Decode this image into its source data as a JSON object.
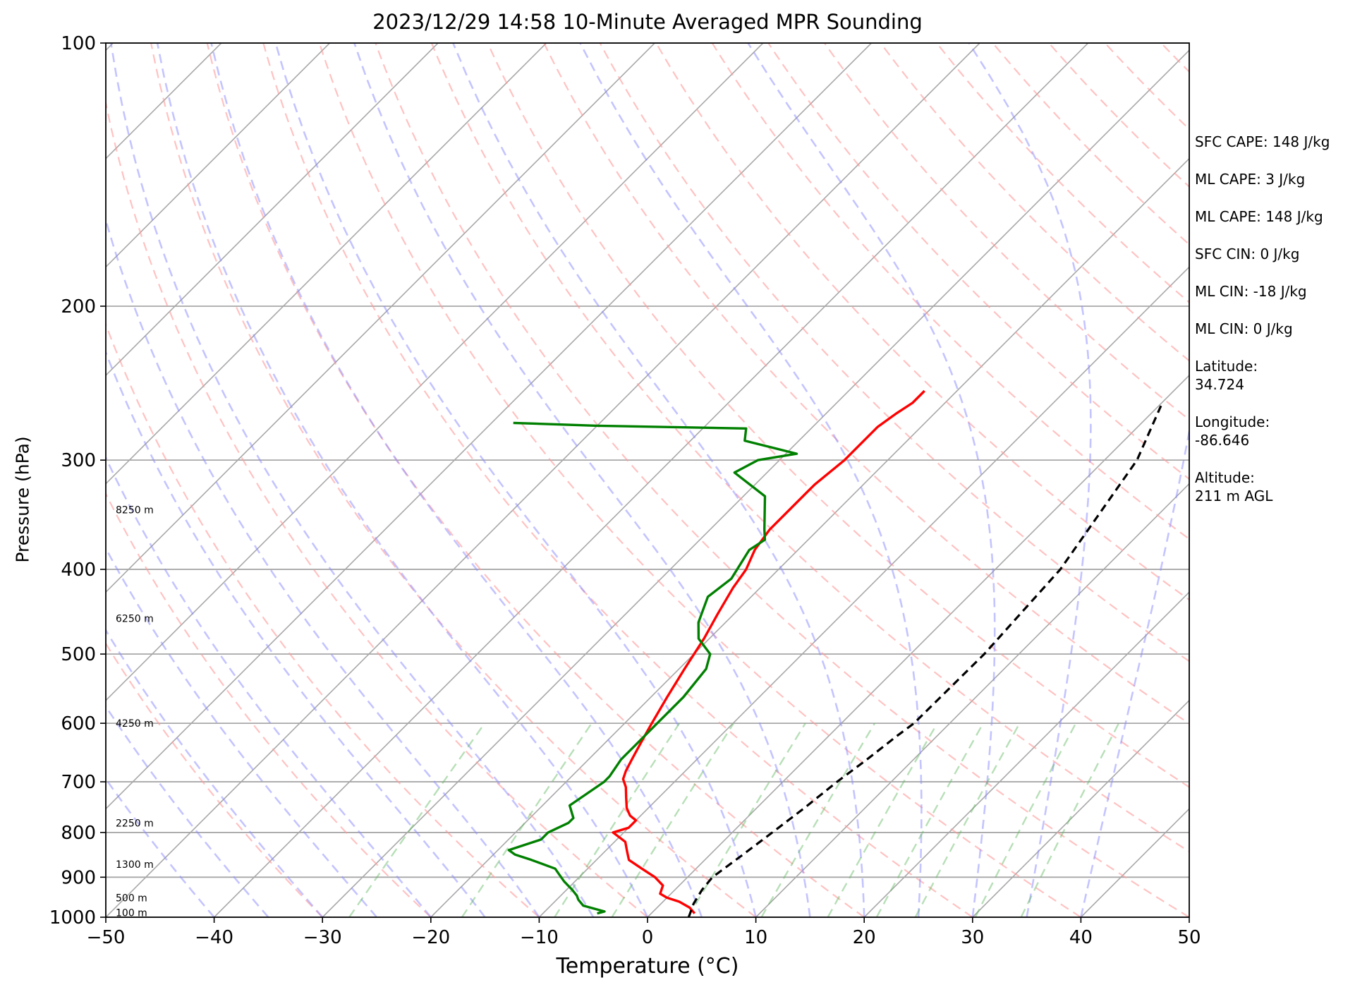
{
  "title": "2023/12/29 14:58 10-Minute Averaged MPR Sounding",
  "stats": [
    {
      "label": "SFC CAPE:",
      "value": "148 J/kg",
      "inline": true
    },
    {
      "label": "ML CAPE:",
      "value": "3 J/kg",
      "inline": true
    },
    {
      "label": "ML CAPE:",
      "value": "148 J/kg",
      "inline": true
    },
    {
      "label": "SFC CIN:",
      "value": "0 J/kg",
      "inline": true
    },
    {
      "label": "ML CIN:",
      "value": "-18 J/kg",
      "inline": true
    },
    {
      "label": "ML CIN:",
      "value": "0 J/kg",
      "inline": true
    },
    {
      "label": "Latitude:",
      "value": "34.724",
      "inline": false
    },
    {
      "label": "Longitude:",
      "value": "-86.646",
      "inline": false
    },
    {
      "label": "Altitude:",
      "value": "211 m AGL",
      "inline": false
    }
  ],
  "chart_data": {
    "type": "line",
    "subtype": "skew-T log-P sounding",
    "title": "2023/12/29 14:58 10-Minute Averaged MPR Sounding",
    "xlabel": "Temperature (°C)",
    "ylabel": "Pressure (hPa)",
    "xlim": [
      -50,
      50
    ],
    "ylim": [
      1000,
      100
    ],
    "yscale": "log",
    "skew": "isotherms tilted at 45 degrees",
    "x_ticks": [
      -50,
      -40,
      -30,
      -20,
      -10,
      0,
      10,
      20,
      30,
      40,
      50
    ],
    "x_tick_labels": [
      "−50",
      "−40",
      "−30",
      "−20",
      "−10",
      "0",
      "10",
      "20",
      "30",
      "40",
      "50"
    ],
    "y_ticks": [
      1000,
      900,
      800,
      700,
      600,
      500,
      400,
      300,
      200,
      100
    ],
    "y_tick_labels": [
      "1000",
      "900",
      "800",
      "700",
      "600",
      "500",
      "400",
      "300",
      "200",
      "100"
    ],
    "height_labels": [
      {
        "text": "100 m",
        "p": 988
      },
      {
        "text": "500 m",
        "p": 950
      },
      {
        "text": "1300 m",
        "p": 870
      },
      {
        "text": "2250 m",
        "p": 780
      },
      {
        "text": "4250 m",
        "p": 600
      },
      {
        "text": "6250 m",
        "p": 455
      },
      {
        "text": "8250 m",
        "p": 342
      }
    ],
    "background_lines": {
      "isotherms_every_c": 10,
      "dry_adiabats_theta_c": [
        -30,
        -20,
        -10,
        0,
        10,
        20,
        30,
        40,
        50,
        60,
        70,
        80,
        90,
        100,
        110,
        120,
        130,
        140,
        150,
        160,
        170,
        180,
        190
      ],
      "moist_adiabats_start_c": [
        -40,
        -35,
        -30,
        -25,
        -20,
        -15,
        -10,
        -5,
        0,
        5,
        10,
        15,
        20,
        25,
        30,
        35,
        40
      ],
      "mixing_ratio_lines_g_kg": [
        0.4,
        1,
        2,
        3,
        5,
        8,
        12,
        16,
        20,
        28,
        36
      ]
    },
    "series": [
      {
        "name": "Temperature",
        "color": "#ff0000",
        "p": [
          990,
          975,
          960,
          950,
          940,
          920,
          900,
          880,
          860,
          840,
          820,
          800,
          790,
          775,
          765,
          750,
          730,
          710,
          695,
          680,
          660,
          640,
          620,
          600,
          560,
          520,
          480,
          450,
          420,
          400,
          380,
          360,
          340,
          320,
          300,
          290,
          275,
          265,
          258,
          250
        ],
        "t": [
          4,
          3,
          1.5,
          0,
          -1,
          -1.5,
          -3,
          -5,
          -7,
          -8,
          -9,
          -11,
          -10,
          -10,
          -11,
          -12,
          -13,
          -14,
          -15,
          -15.5,
          -16,
          -16.5,
          -17,
          -17.5,
          -18.5,
          -19.5,
          -20.5,
          -21.5,
          -22.5,
          -23,
          -24,
          -24.5,
          -24.5,
          -24.5,
          -24,
          -24,
          -24,
          -23.5,
          -23,
          -23
        ]
      },
      {
        "name": "Dewpoint",
        "color": "#008000",
        "p": [
          990,
          985,
          970,
          955,
          945,
          930,
          910,
          895,
          880,
          860,
          848,
          838,
          815,
          800,
          780,
          770,
          745,
          700,
          690,
          660,
          640,
          620,
          600,
          560,
          520,
          500,
          480,
          460,
          430,
          410,
          380,
          370,
          360,
          330,
          310,
          300,
          295,
          285,
          276,
          274,
          272
        ],
        "t": [
          -5,
          -4.5,
          -7,
          -8,
          -8.5,
          -9.5,
          -11,
          -12,
          -13,
          -16,
          -18,
          -19,
          -17,
          -17,
          -16,
          -16,
          -17.5,
          -16.5,
          -16.5,
          -17,
          -17,
          -17,
          -17,
          -17,
          -17.5,
          -18.5,
          -21,
          -22.5,
          -24,
          -23.5,
          -24.5,
          -24,
          -25,
          -28,
          -33,
          -32,
          -29,
          -35,
          -36,
          -50,
          -58
        ]
      },
      {
        "name": "Parcel",
        "color": "#000000",
        "dashed": true,
        "p": [
          1000,
          965,
          930,
          900,
          850,
          800,
          750,
          700,
          660,
          620,
          600,
          500,
          400,
          300,
          260
        ],
        "t": [
          3.8,
          3,
          2.5,
          2.3,
          3.0,
          3.7,
          4.4,
          5.0,
          5.7,
          6.3,
          6.7,
          6.8,
          6.0,
          3.0,
          0.2
        ]
      }
    ]
  }
}
